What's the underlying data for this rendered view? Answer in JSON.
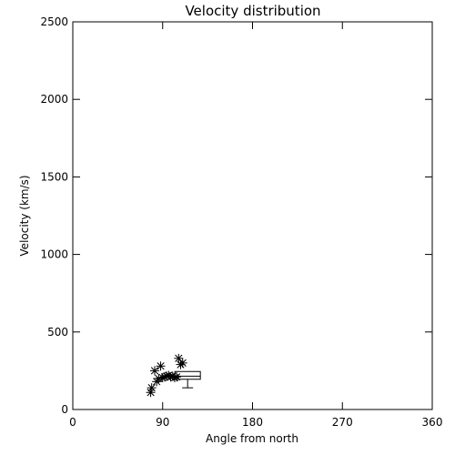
{
  "chart_data": {
    "type": "scatter",
    "title": "Velocity distribution",
    "xlabel": "Angle from north",
    "ylabel": "Velocity (km/s)",
    "xlim": [
      0,
      360
    ],
    "ylim": [
      0,
      2500
    ],
    "xticks": [
      0,
      90,
      180,
      270,
      360
    ],
    "yticks": [
      0,
      500,
      1000,
      1500,
      2000,
      2500
    ],
    "grid": false,
    "marker": "asterisk",
    "x": [
      78,
      79,
      82,
      84,
      86,
      88,
      90,
      92,
      94,
      96,
      98,
      100,
      102,
      104,
      106,
      108,
      110
    ],
    "y": [
      110,
      140,
      250,
      180,
      200,
      280,
      205,
      210,
      215,
      220,
      210,
      215,
      205,
      210,
      330,
      290,
      300
    ],
    "boxplot": {
      "x": 115,
      "median": 215,
      "q1": 195,
      "q3": 245,
      "whisker_low": 140,
      "whisker_high": 245
    }
  }
}
